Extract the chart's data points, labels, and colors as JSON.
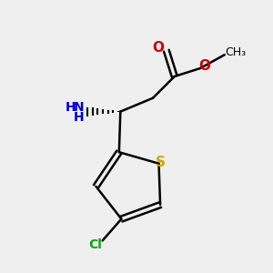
{
  "bg_color": "#efefef",
  "atom_colors": {
    "C": "#000000",
    "H": "#000000",
    "N": "#0000cc",
    "O": "#cc0000",
    "S": "#ccaa00",
    "Cl": "#00aa00"
  },
  "bond_color": "#000000",
  "title": "",
  "figsize": [
    3.0,
    3.0
  ],
  "dpi": 100
}
